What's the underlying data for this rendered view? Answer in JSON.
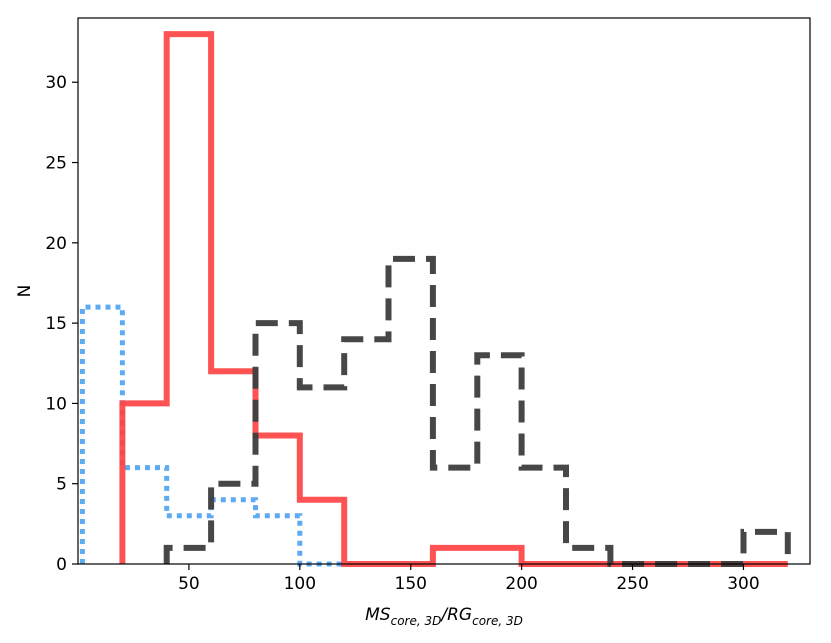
{
  "chart_data": {
    "type": "histogram",
    "title": "",
    "xlabel": {
      "base1": "MS",
      "sub1": "core, 3D",
      "sep": "/",
      "base2": "RG",
      "sub2": "core, 3D"
    },
    "ylabel": "N",
    "xlim": [
      0,
      330
    ],
    "ylim": [
      0,
      34
    ],
    "xticks": [
      50,
      100,
      150,
      200,
      250,
      300
    ],
    "yticks": [
      0,
      5,
      10,
      15,
      20,
      25,
      30
    ],
    "grid": false,
    "legend": "none",
    "series": [
      {
        "style": "dotted",
        "color": "#55a6f2",
        "bin_edges": [
          2,
          20,
          40,
          60,
          80,
          100,
          120
        ],
        "counts": [
          16,
          6,
          3,
          4,
          3,
          0
        ]
      },
      {
        "style": "solid",
        "color": "#ff4040",
        "bin_edges": [
          20,
          40,
          60,
          80,
          100,
          120,
          140,
          160,
          180,
          200,
          220,
          240,
          260,
          280,
          300,
          320
        ],
        "counts": [
          10,
          33,
          12,
          8,
          4,
          0,
          0,
          1,
          1,
          0,
          0,
          0,
          0,
          0,
          0
        ]
      },
      {
        "style": "dashed",
        "color": "#3d3d3d",
        "bin_edges": [
          40,
          60,
          80,
          100,
          120,
          140,
          160,
          180,
          200,
          220,
          240,
          260,
          280,
          300,
          320
        ],
        "counts": [
          1,
          5,
          15,
          11,
          14,
          19,
          6,
          13,
          6,
          1,
          0,
          0,
          0,
          2
        ]
      }
    ]
  }
}
